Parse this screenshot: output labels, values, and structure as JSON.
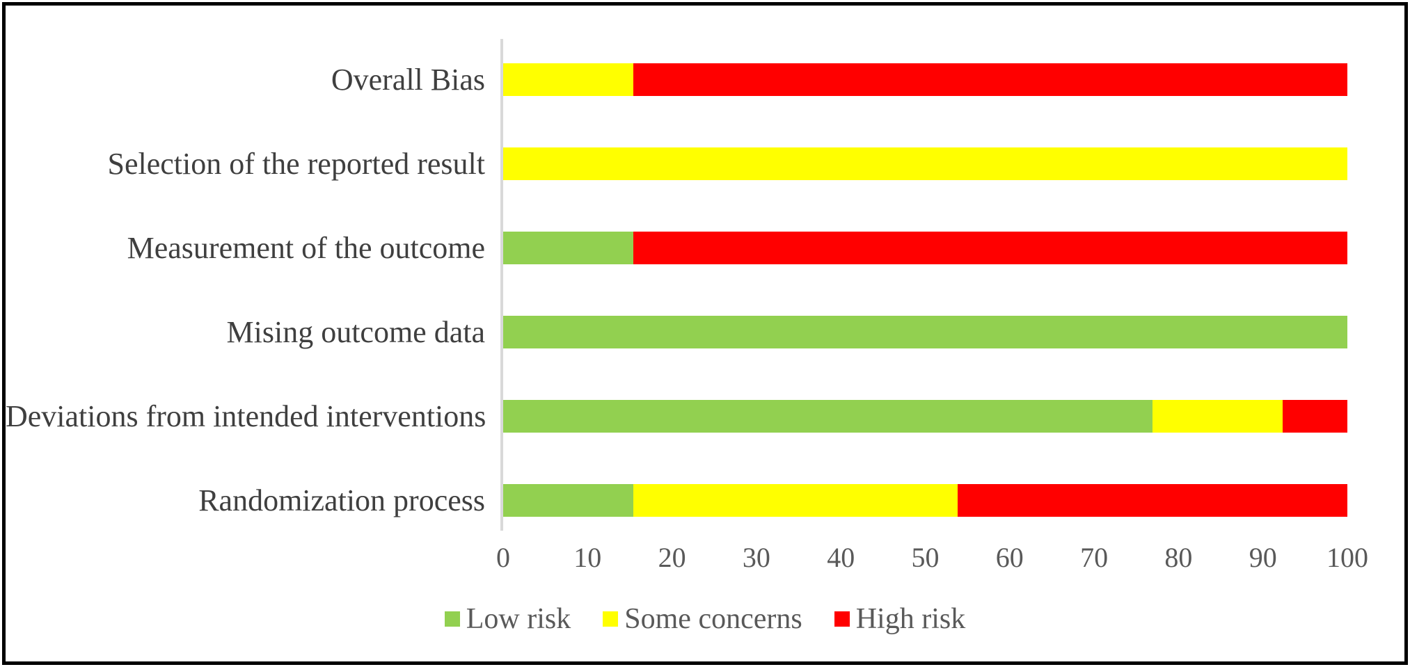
{
  "chart_data": {
    "type": "bar",
    "orientation": "horizontal",
    "stacked": true,
    "title": "",
    "xlabel": "",
    "ylabel": "",
    "xlim": [
      0,
      100
    ],
    "x_ticks": [
      0,
      10,
      20,
      30,
      40,
      50,
      60,
      70,
      80,
      90,
      100
    ],
    "grid": false,
    "legend_position": "bottom",
    "categories_top_to_bottom": [
      "Overall Bias",
      "Selection of the reported result",
      "Measurement of the outcome",
      "Mising outcome data",
      "Deviations from intended interventions",
      "Randomization process"
    ],
    "series": [
      {
        "name": "Low risk",
        "color": "#92D050",
        "values_pct": [
          0,
          0,
          15.4,
          100,
          76.9,
          15.4
        ]
      },
      {
        "name": "Some concerns",
        "color": "#FFFF00",
        "values_pct": [
          15.4,
          100,
          0,
          0,
          15.4,
          38.5
        ]
      },
      {
        "name": "High risk",
        "color": "#FF0000",
        "values_pct": [
          84.6,
          0,
          84.6,
          0,
          7.7,
          46.2
        ]
      }
    ],
    "colors": {
      "low_risk": "#92D050",
      "some_concerns": "#FFFF00",
      "high_risk": "#FF0000",
      "axis_line": "#D9D9D9",
      "category_text": "#3F3F3F",
      "tick_text": "#595959",
      "frame_border": "#000000",
      "background": "#FFFFFF"
    }
  }
}
